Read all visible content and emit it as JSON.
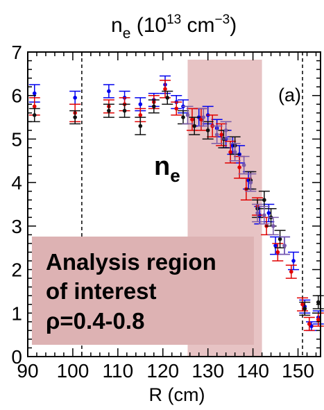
{
  "chart_data": {
    "type": "scatter",
    "title_main": "n",
    "title_sub": "e",
    "title_unit_open": " (10",
    "title_unit_exp": "13",
    "title_unit_mid": " cm",
    "title_unit_exp2": "−3",
    "title_unit_close": ")",
    "xlabel": "R (cm)",
    "ylabel": "",
    "xlim": [
      90,
      155
    ],
    "ylim": [
      0,
      7
    ],
    "x_ticks": [
      "90",
      "100",
      "110",
      "120",
      "130",
      "140",
      "150"
    ],
    "y_ticks": [
      "0",
      "1",
      "2",
      "3",
      "4",
      "5",
      "6",
      "7"
    ],
    "panel_label": "(a)",
    "series_label_main": "n",
    "series_label_sub": "e",
    "dashed_lines_x": [
      102,
      151
    ],
    "highlight_region": {
      "x_start": 125.5,
      "x_end": 142,
      "color": "#e7c3c4"
    },
    "callout": {
      "lines": [
        "Analysis region",
        "of interest",
        "ρ=0.4-0.8"
      ],
      "color": "#ddb2b3"
    },
    "series": [
      {
        "color": "#0000ee",
        "points": [
          {
            "x": 91.5,
            "y": 6.05,
            "err": 0.2
          },
          {
            "x": 100.5,
            "y": 5.95,
            "err": 0.15
          },
          {
            "x": 108,
            "y": 6.1,
            "err": 0.15
          },
          {
            "x": 111.5,
            "y": 5.95,
            "err": 0.15
          },
          {
            "x": 115,
            "y": 5.8,
            "err": 0.15
          },
          {
            "x": 118,
            "y": 5.9,
            "err": 0.15
          },
          {
            "x": 120.5,
            "y": 6.25,
            "err": 0.2
          },
          {
            "x": 123,
            "y": 5.85,
            "err": 0.15
          },
          {
            "x": 124.5,
            "y": 5.75,
            "err": 0.15
          },
          {
            "x": 128,
            "y": 5.5,
            "err": 0.2
          },
          {
            "x": 130,
            "y": 5.55,
            "err": 0.2
          },
          {
            "x": 132,
            "y": 5.25,
            "err": 0.2
          },
          {
            "x": 134,
            "y": 5.0,
            "err": 0.2
          },
          {
            "x": 135.5,
            "y": 4.85,
            "err": 0.2
          },
          {
            "x": 137,
            "y": 4.65,
            "err": 0.2
          },
          {
            "x": 139,
            "y": 4.05,
            "err": 0.2
          },
          {
            "x": 141.5,
            "y": 3.25,
            "err": 0.2
          },
          {
            "x": 143.5,
            "y": 3.3,
            "err": 0.2
          },
          {
            "x": 145,
            "y": 2.55,
            "err": 0.2
          },
          {
            "x": 147,
            "y": 2.55,
            "err": 0.2
          },
          {
            "x": 149,
            "y": 2.2,
            "err": 0.2
          },
          {
            "x": 151.5,
            "y": 1.15,
            "err": 0.15
          },
          {
            "x": 153,
            "y": 0.7,
            "err": 0.1
          },
          {
            "x": 154.5,
            "y": 0.9,
            "err": 0.15
          }
        ]
      },
      {
        "color": "#e00000",
        "points": [
          {
            "x": 91.5,
            "y": 5.75,
            "err": 0.2
          },
          {
            "x": 100.5,
            "y": 5.6,
            "err": 0.2
          },
          {
            "x": 108,
            "y": 5.75,
            "err": 0.15
          },
          {
            "x": 111.5,
            "y": 5.8,
            "err": 0.15
          },
          {
            "x": 115,
            "y": 5.55,
            "err": 0.15
          },
          {
            "x": 118,
            "y": 5.85,
            "err": 0.15
          },
          {
            "x": 120.5,
            "y": 6.15,
            "err": 0.2
          },
          {
            "x": 123,
            "y": 5.7,
            "err": 0.15
          },
          {
            "x": 126.5,
            "y": 5.45,
            "err": 0.25
          },
          {
            "x": 128.5,
            "y": 5.45,
            "err": 0.25
          },
          {
            "x": 131,
            "y": 5.3,
            "err": 0.25
          },
          {
            "x": 133,
            "y": 5.1,
            "err": 0.25
          },
          {
            "x": 135,
            "y": 4.7,
            "err": 0.25
          },
          {
            "x": 137,
            "y": 4.35,
            "err": 0.25
          },
          {
            "x": 138.5,
            "y": 3.85,
            "err": 0.25
          },
          {
            "x": 141,
            "y": 3.45,
            "err": 0.2
          },
          {
            "x": 143,
            "y": 3.0,
            "err": 0.2
          },
          {
            "x": 145.5,
            "y": 2.4,
            "err": 0.2
          },
          {
            "x": 148.5,
            "y": 1.95,
            "err": 0.15
          },
          {
            "x": 151,
            "y": 1.2,
            "err": 0.15
          },
          {
            "x": 152.5,
            "y": 0.75,
            "err": 0.15
          },
          {
            "x": 154.5,
            "y": 0.85,
            "err": 0.15
          }
        ]
      },
      {
        "color": "#111111",
        "points": [
          {
            "x": 91.5,
            "y": 5.55,
            "err": 0.15
          },
          {
            "x": 100.5,
            "y": 5.5,
            "err": 0.15
          },
          {
            "x": 108,
            "y": 5.65,
            "err": 0.15
          },
          {
            "x": 111.5,
            "y": 5.65,
            "err": 0.15
          },
          {
            "x": 115,
            "y": 5.3,
            "err": 0.2
          },
          {
            "x": 118,
            "y": 5.75,
            "err": 0.15
          },
          {
            "x": 121,
            "y": 5.95,
            "err": 0.15
          },
          {
            "x": 124.5,
            "y": 5.5,
            "err": 0.15
          },
          {
            "x": 127,
            "y": 5.3,
            "err": 0.2
          },
          {
            "x": 130,
            "y": 5.2,
            "err": 0.2
          },
          {
            "x": 133.5,
            "y": 5.0,
            "err": 0.2
          },
          {
            "x": 136,
            "y": 4.85,
            "err": 0.2
          },
          {
            "x": 139.5,
            "y": 4.05,
            "err": 0.2
          },
          {
            "x": 141,
            "y": 3.4,
            "err": 0.2
          },
          {
            "x": 142.5,
            "y": 3.6,
            "err": 0.2
          },
          {
            "x": 144,
            "y": 3.2,
            "err": 0.2
          },
          {
            "x": 146,
            "y": 2.7,
            "err": 0.2
          },
          {
            "x": 151.5,
            "y": 1.1,
            "err": 0.15
          },
          {
            "x": 154.5,
            "y": 1.25,
            "err": 0.15
          }
        ]
      },
      {
        "color": "#7a5aa8",
        "points": [
          {
            "x": 125.5,
            "y": 5.55,
            "err": 0.2
          },
          {
            "x": 129,
            "y": 5.5,
            "err": 0.2
          },
          {
            "x": 132,
            "y": 5.1,
            "err": 0.2
          },
          {
            "x": 134,
            "y": 5.2,
            "err": 0.2
          },
          {
            "x": 136,
            "y": 4.7,
            "err": 0.2
          },
          {
            "x": 138,
            "y": 4.4,
            "err": 0.2
          },
          {
            "x": 139.5,
            "y": 4.0,
            "err": 0.2
          },
          {
            "x": 141,
            "y": 3.3,
            "err": 0.2
          },
          {
            "x": 142.5,
            "y": 3.25,
            "err": 0.2
          },
          {
            "x": 144.5,
            "y": 3.0,
            "err": 0.2
          },
          {
            "x": 147,
            "y": 2.55,
            "err": 0.2
          }
        ]
      }
    ]
  }
}
